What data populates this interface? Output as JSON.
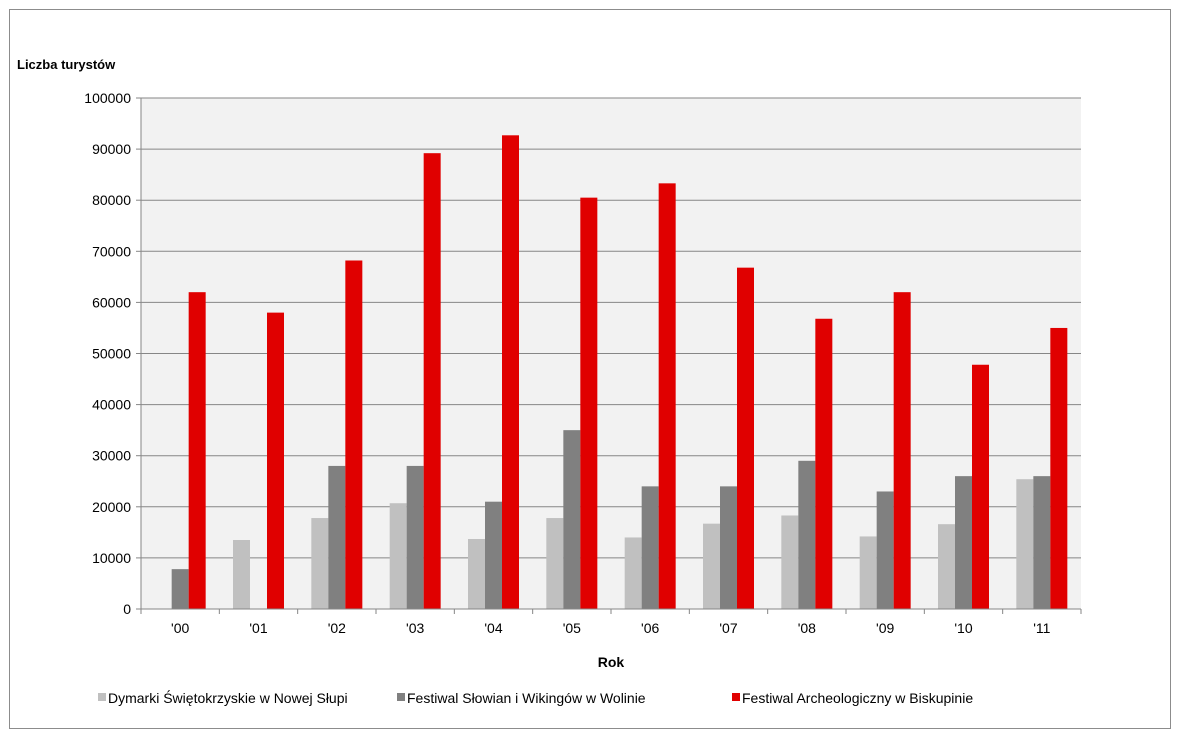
{
  "chart_data": {
    "type": "bar",
    "ylabel": "Liczba turystów",
    "xlabel": "Rok",
    "ylim": [
      0,
      100000
    ],
    "yticks": [
      0,
      10000,
      20000,
      30000,
      40000,
      50000,
      60000,
      70000,
      80000,
      90000,
      100000
    ],
    "grid": true,
    "legend_position": "bottom",
    "categories": [
      "'00",
      "'01",
      "'02",
      "'03",
      "'04",
      "'05",
      "'06",
      "'07",
      "'08",
      "'09",
      "'10",
      "'11"
    ],
    "series": [
      {
        "name": "Dymarki Świętokrzyskie w Nowej Słupi",
        "color": "#c0c0c0",
        "values": [
          0,
          13500,
          17800,
          20700,
          13700,
          17800,
          14000,
          16700,
          18300,
          14200,
          16600,
          25400
        ]
      },
      {
        "name": "Festiwal Słowian i Wikingów w Wolinie",
        "color": "#808080",
        "values": [
          7800,
          0,
          28000,
          28000,
          21000,
          35000,
          24000,
          24000,
          29000,
          23000,
          26000,
          26000
        ]
      },
      {
        "name": "Festiwal Archeologiczny w Biskupinie",
        "color": "#e00000",
        "values": [
          62000,
          58000,
          68200,
          89200,
          92700,
          80500,
          83300,
          66800,
          56800,
          62000,
          47800,
          55000
        ]
      }
    ]
  }
}
